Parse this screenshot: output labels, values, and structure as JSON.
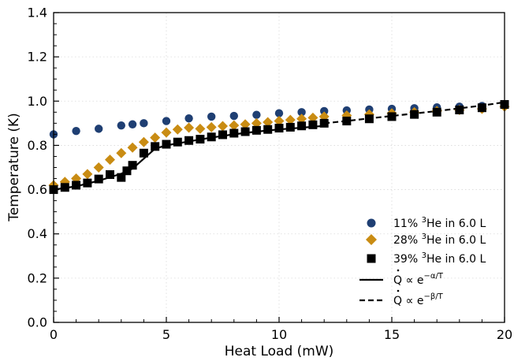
{
  "chart_data": {
    "type": "scatter",
    "xlabel": "Heat Load (mW)",
    "ylabel": "Temperature (K)",
    "xlim": [
      0,
      20
    ],
    "ylim": [
      0,
      1.4
    ],
    "xticks": [
      "0",
      "5",
      "10",
      "15",
      "20"
    ],
    "yticks": [
      "0.0",
      "0.2",
      "0.4",
      "0.6",
      "0.8",
      "1.0",
      "1.2",
      "1.4"
    ],
    "grid": true,
    "legend_position": "bottom-right",
    "series": [
      {
        "name": "11% ³He in 6.0 L",
        "marker": "circle",
        "color": "#1f3f73",
        "x": [
          0,
          1,
          2,
          3,
          3.5,
          4,
          5,
          6,
          7,
          8,
          9,
          10,
          11,
          12,
          13,
          14,
          15,
          16,
          17,
          18,
          19,
          20
        ],
        "y": [
          0.85,
          0.865,
          0.875,
          0.89,
          0.895,
          0.9,
          0.91,
          0.922,
          0.93,
          0.933,
          0.938,
          0.945,
          0.95,
          0.955,
          0.958,
          0.962,
          0.965,
          0.968,
          0.972,
          0.975,
          0.978,
          0.98
        ]
      },
      {
        "name": "28% ³He in 6.0 L",
        "marker": "diamond",
        "color": "#c98c13",
        "x": [
          0,
          0.5,
          1,
          1.5,
          2,
          2.5,
          3,
          3.5,
          4,
          4.5,
          5,
          5.5,
          6,
          6.5,
          7,
          7.5,
          8,
          8.5,
          9,
          9.5,
          10,
          10.5,
          11,
          11.5,
          12,
          13,
          14,
          15,
          16,
          17,
          18,
          19,
          20
        ],
        "y": [
          0.62,
          0.635,
          0.65,
          0.67,
          0.7,
          0.735,
          0.765,
          0.79,
          0.815,
          0.835,
          0.858,
          0.872,
          0.88,
          0.875,
          0.882,
          0.887,
          0.89,
          0.895,
          0.9,
          0.905,
          0.91,
          0.915,
          0.92,
          0.925,
          0.93,
          0.935,
          0.94,
          0.945,
          0.95,
          0.955,
          0.96,
          0.965,
          0.975
        ]
      },
      {
        "name": "39% ³He in 6.0 L",
        "marker": "square",
        "color": "#000000",
        "x": [
          0,
          0.5,
          1,
          1.5,
          2,
          2.5,
          3,
          3.25,
          3.5,
          4,
          4.5,
          5,
          5.5,
          6,
          6.5,
          7,
          7.5,
          8,
          8.5,
          9,
          9.5,
          10,
          10.5,
          11,
          11.5,
          12,
          13,
          14,
          15,
          16,
          17,
          18,
          19,
          20
        ],
        "y": [
          0.6,
          0.61,
          0.62,
          0.63,
          0.648,
          0.668,
          0.655,
          0.685,
          0.71,
          0.765,
          0.795,
          0.805,
          0.815,
          0.822,
          0.828,
          0.838,
          0.848,
          0.855,
          0.862,
          0.868,
          0.872,
          0.878,
          0.882,
          0.888,
          0.893,
          0.9,
          0.91,
          0.92,
          0.93,
          0.94,
          0.95,
          0.96,
          0.97,
          0.985
        ]
      }
    ],
    "fits": [
      {
        "name": "Q̇ ∝ e^(−α/T)",
        "style": "solid",
        "color": "#000000",
        "x": [
          0,
          1,
          2,
          3,
          3.5,
          4,
          4.5,
          5,
          6,
          7,
          8,
          9,
          10,
          11,
          12
        ],
        "y": [
          0.6,
          0.615,
          0.64,
          0.672,
          0.695,
          0.74,
          0.785,
          0.8,
          0.818,
          0.835,
          0.85,
          0.862,
          0.872,
          0.88,
          0.888
        ]
      },
      {
        "name": "Q̇ ∝ e^(−β/T)",
        "style": "dashed",
        "color": "#000000",
        "x": [
          12,
          13,
          14,
          15,
          16,
          17,
          18,
          19,
          20
        ],
        "y": [
          0.9,
          0.91,
          0.922,
          0.933,
          0.944,
          0.955,
          0.967,
          0.98,
          0.995
        ]
      }
    ]
  },
  "legend": {
    "items": [
      {
        "prefix": "11% ",
        "sup": "3",
        "suffix": "He in 6.0 L"
      },
      {
        "prefix": "28% ",
        "sup": "3",
        "suffix": "He in 6.0 L"
      },
      {
        "prefix": "39% ",
        "sup": "3",
        "suffix": "He in 6.0 L"
      },
      {
        "q": "Q",
        "mid": " ∝ e",
        "exp": "−α/T"
      },
      {
        "q": "Q",
        "mid": " ∝ e",
        "exp": "−β/T"
      }
    ]
  }
}
